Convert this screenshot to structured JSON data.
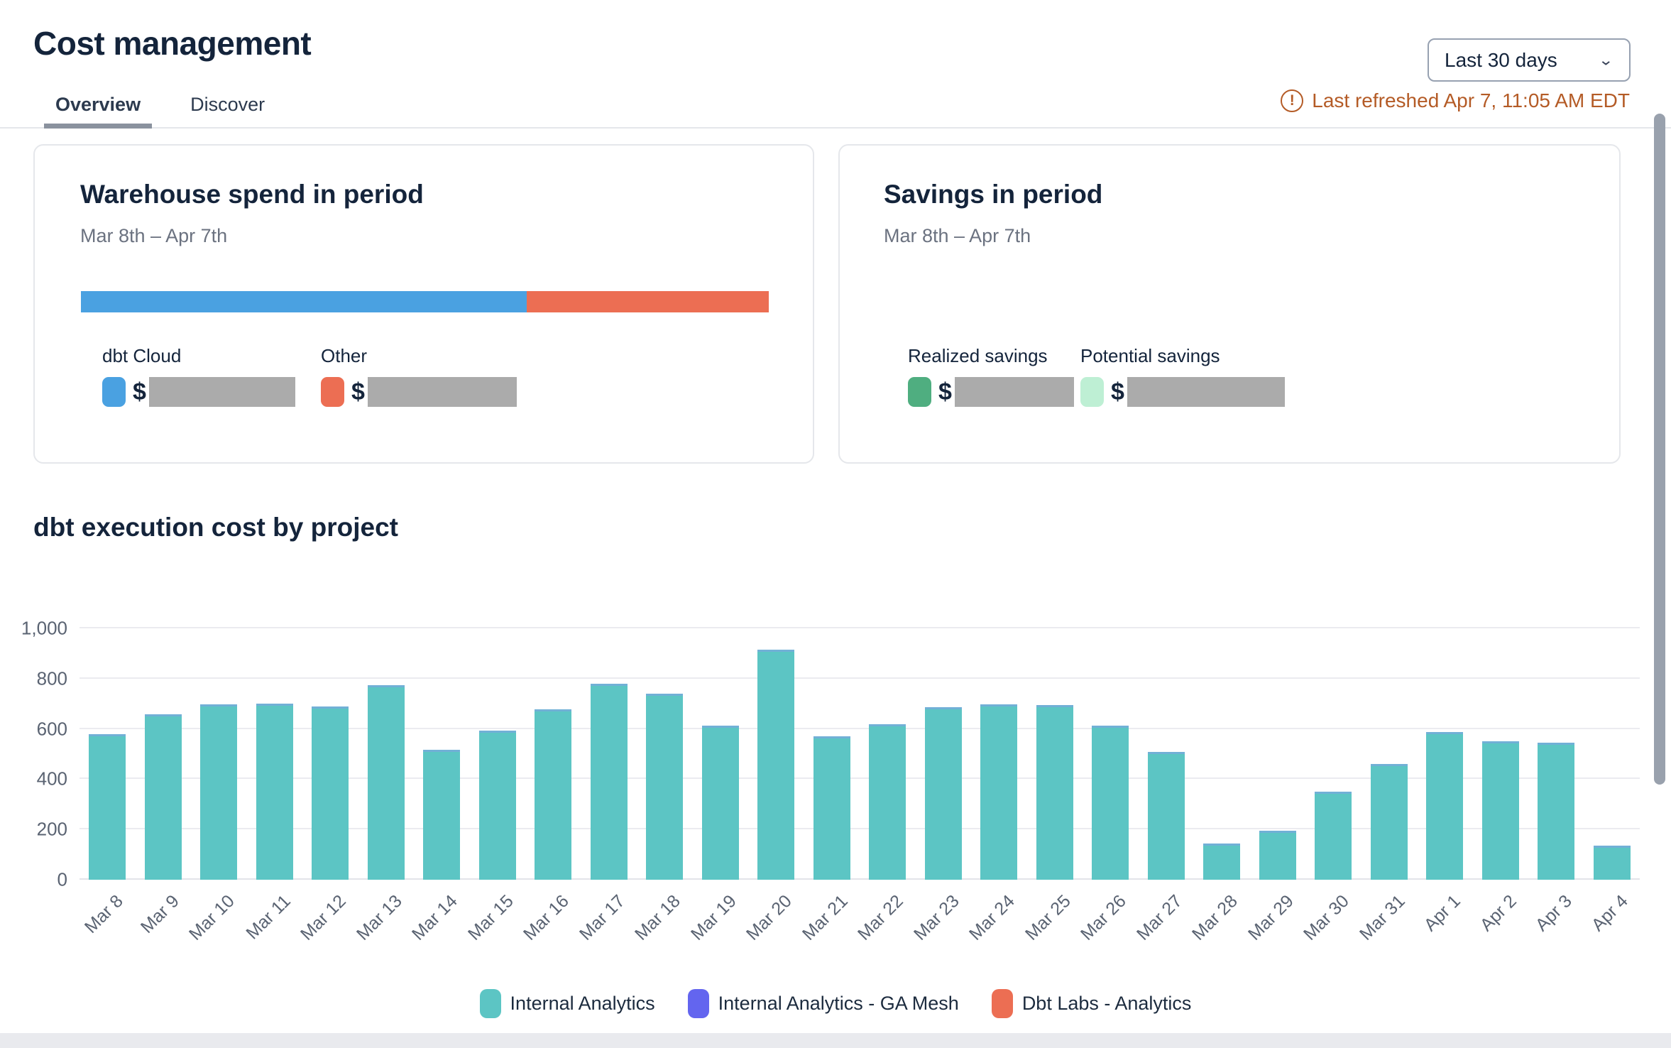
{
  "header": {
    "title": "Cost management",
    "tabs": [
      {
        "label": "Overview",
        "active": true
      },
      {
        "label": "Discover",
        "active": false
      }
    ],
    "period_selector": {
      "value": "Last 30 days",
      "chevron_icon": "chevron-down-icon"
    },
    "last_refreshed": "Last refreshed Apr 7, 11:05 AM EDT",
    "warning_glyph": "!"
  },
  "cards": {
    "warehouse": {
      "title": "Warehouse spend in period",
      "subtitle": "Mar 8th – Apr 7th",
      "legend": [
        {
          "label": "dbt Cloud",
          "color": "#4AA1E1",
          "value_prefix": "$",
          "value_redacted": true
        },
        {
          "label": "Other",
          "color": "#EC6E53",
          "value_prefix": "$",
          "value_redacted": true
        }
      ]
    },
    "savings": {
      "title": "Savings in period",
      "subtitle": "Mar 8th – Apr 7th",
      "metrics": [
        {
          "label": "Realized savings",
          "color": "#4FAE80",
          "value_prefix": "$",
          "value_redacted": true
        },
        {
          "label": "Potential savings",
          "color": "#BEEFD4",
          "value_prefix": "$",
          "value_redacted": true
        }
      ]
    }
  },
  "section": {
    "title": "dbt execution cost by project"
  },
  "chart_data": [
    {
      "name": "warehouse_spend_stacked_bar",
      "type": "bar",
      "stacked": true,
      "orientation": "horizontal",
      "values_redacted": true,
      "segments": [
        {
          "label": "dbt Cloud",
          "color": "#4AA1E1",
          "fraction": 0.648
        },
        {
          "label": "Other",
          "color": "#EC6E53",
          "fraction": 0.352
        }
      ]
    },
    {
      "name": "dbt_execution_cost_by_project",
      "type": "bar",
      "title": "dbt execution cost by project",
      "categories": [
        "Mar 8",
        "Mar 9",
        "Mar 10",
        "Mar 11",
        "Mar 12",
        "Mar 13",
        "Mar 14",
        "Mar 15",
        "Mar 16",
        "Mar 17",
        "Mar 18",
        "Mar 19",
        "Mar 20",
        "Mar 21",
        "Mar 22",
        "Mar 23",
        "Mar 24",
        "Mar 25",
        "Mar 26",
        "Mar 27",
        "Mar 28",
        "Mar 29",
        "Mar 30",
        "Mar 31",
        "Apr 1",
        "Apr 2",
        "Apr 3",
        "Apr 4"
      ],
      "series": [
        {
          "name": "Internal Analytics",
          "color": "#5CC5C4",
          "values": [
            578,
            659,
            697,
            702,
            688,
            774,
            516,
            592,
            679,
            779,
            741,
            613,
            914,
            571,
            619,
            686,
            698,
            696,
            612,
            509,
            144,
            195,
            349,
            461,
            587,
            551,
            544,
            136
          ]
        },
        {
          "name": "Internal Analytics - GA Mesh",
          "color": "#6365EF",
          "values": [
            0,
            0,
            0,
            0,
            0,
            0,
            0,
            0,
            0,
            0,
            0,
            0,
            0,
            0,
            0,
            0,
            0,
            0,
            0,
            0,
            0,
            0,
            0,
            0,
            0,
            0,
            0,
            0
          ]
        },
        {
          "name": "Dbt Labs - Analytics",
          "color": "#EC6E53",
          "values": [
            0,
            0,
            0,
            0,
            0,
            0,
            0,
            0,
            0,
            0,
            0,
            0,
            0,
            0,
            0,
            0,
            0,
            0,
            0,
            0,
            0,
            0,
            0,
            0,
            0,
            0,
            0,
            0
          ]
        }
      ],
      "ylim": [
        0,
        1000
      ],
      "yticks": [
        "0",
        "200",
        "400",
        "600",
        "800",
        "1,000"
      ],
      "grid": true,
      "xlabel": "",
      "ylabel": "",
      "legend_position": "bottom"
    }
  ]
}
